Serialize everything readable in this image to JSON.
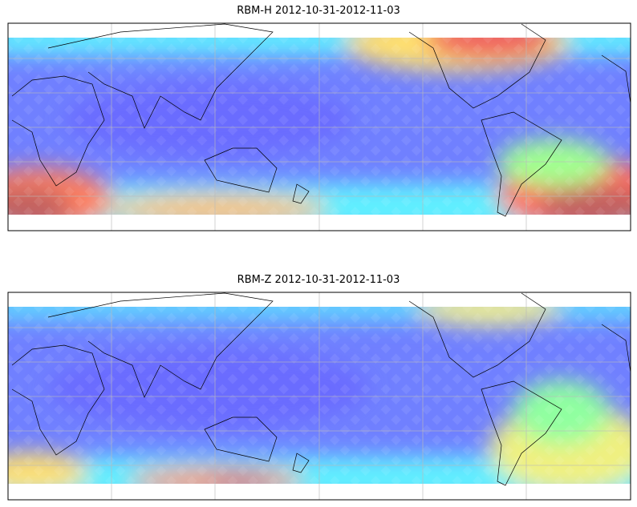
{
  "panels": [
    {
      "title": "RBM-H 2012-10-31-2012-11-03"
    },
    {
      "title": "RBM-Z 2012-10-31-2012-11-03"
    }
  ]
}
